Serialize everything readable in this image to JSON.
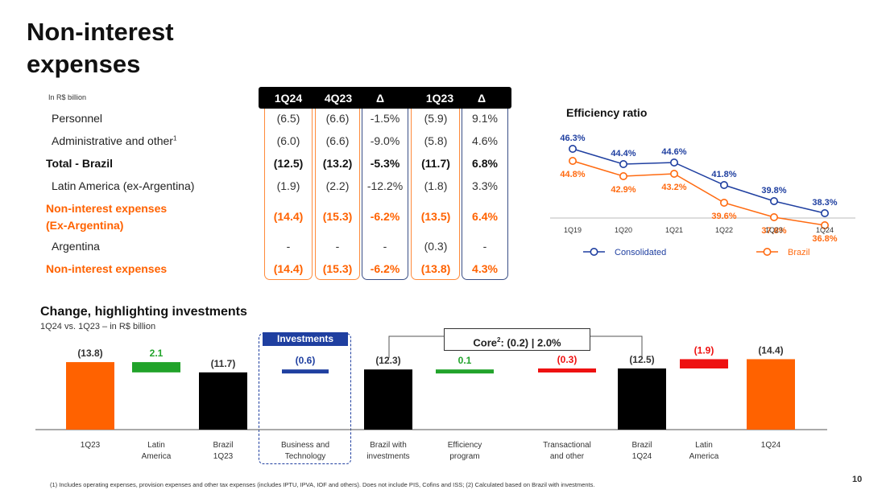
{
  "page": {
    "title_line1": "Non-interest",
    "title_line2": "expenses",
    "page_number": "10"
  },
  "table": {
    "unit": "In R$ billion",
    "headers": [
      "1Q24",
      "4Q23",
      "Δ",
      "1Q23",
      "Δ"
    ],
    "rows": [
      {
        "label": "Personnel",
        "values": [
          "(6.5)",
          "(6.6)",
          "-1.5%",
          "(5.9)",
          "9.1%"
        ]
      },
      {
        "label": "Administrative and other",
        "sup": "1",
        "values": [
          "(6.0)",
          "(6.6)",
          "-9.0%",
          "(5.8)",
          "4.6%"
        ]
      },
      {
        "label": "Total - Brazil",
        "values": [
          "(12.5)",
          "(13.2)",
          "-5.3%",
          "(11.7)",
          "6.8%"
        ]
      },
      {
        "label": "Latin America (ex-Argentina)",
        "values": [
          "(1.9)",
          "(2.2)",
          "-12.2%",
          "(1.8)",
          "3.3%"
        ]
      },
      {
        "label_line1": "Non-interest expenses",
        "label_line2": "(Ex-Argentina)",
        "values": [
          "(14.4)",
          "(15.3)",
          "-6.2%",
          "(13.5)",
          "6.4%"
        ]
      },
      {
        "label": "Argentina",
        "values": [
          "-",
          "-",
          "-",
          "(0.3)",
          "-"
        ]
      },
      {
        "label": "Non-interest expenses",
        "values": [
          "(14.4)",
          "(15.3)",
          "-6.2%",
          "(13.8)",
          "4.3%"
        ]
      }
    ]
  },
  "colors": {
    "orange": "#ff6200",
    "blue": "#1f3fa0",
    "black": "#000000",
    "green": "#21a32a",
    "red": "#ee1111"
  },
  "chart_data": [
    {
      "type": "line",
      "title": "Efficiency ratio",
      "categories": [
        "1Q19",
        "1Q20",
        "1Q21",
        "1Q22",
        "1Q23",
        "1Q24"
      ],
      "series": [
        {
          "name": "Consolidated",
          "values": [
            46.3,
            44.4,
            44.6,
            41.8,
            39.8,
            38.3
          ],
          "labels": [
            "46.3%",
            "44.4%",
            "44.6%",
            "41.8%",
            "39.8%",
            "38.3%"
          ]
        },
        {
          "name": "Brazil",
          "values": [
            44.8,
            42.9,
            43.2,
            39.6,
            37.8,
            36.8
          ],
          "labels": [
            "44.8%",
            "42.9%",
            "43.2%",
            "39.6%",
            "37.8%",
            "36.8%"
          ]
        }
      ],
      "ylim": [
        32,
        50
      ]
    },
    {
      "type": "bar",
      "title": "Change, highlighting investments",
      "subtitle": "1Q24 vs. 1Q23 – in R$ billion",
      "categories": [
        "1Q23",
        "Latin America",
        "Brazil 1Q23",
        "Business and Technology",
        "Brazil with investments",
        "Efficiency program",
        "Transactional and other",
        "Brazil 1Q24",
        "Latin America",
        "1Q24"
      ],
      "values": [
        13.8,
        2.1,
        11.7,
        0.6,
        12.3,
        0.1,
        0.3,
        12.5,
        1.9,
        14.4
      ],
      "labels": [
        "(13.8)",
        "2.1",
        "(11.7)",
        "(0.6)",
        "(12.3)",
        "0.1",
        "(0.3)",
        "(12.5)",
        "(1.9)",
        "(14.4)"
      ],
      "kinds": [
        "total-orange",
        "delta-green",
        "total-black",
        "delta-blue",
        "total-black",
        "delta-green",
        "delta-red",
        "total-black",
        "delta-red",
        "total-orange"
      ],
      "investments_label": "Investments",
      "core_note": {
        "text": "Core",
        "sup": "2",
        "value": ": (0.2) | 2.0%"
      }
    }
  ],
  "footnote": "(1) Includes operating expenses, provision expenses and other tax expenses (includes IPTU, IPVA, IOF and others). Does not include PIS, Cofins and ISS; (2) Calculated based on Brazil with investments."
}
